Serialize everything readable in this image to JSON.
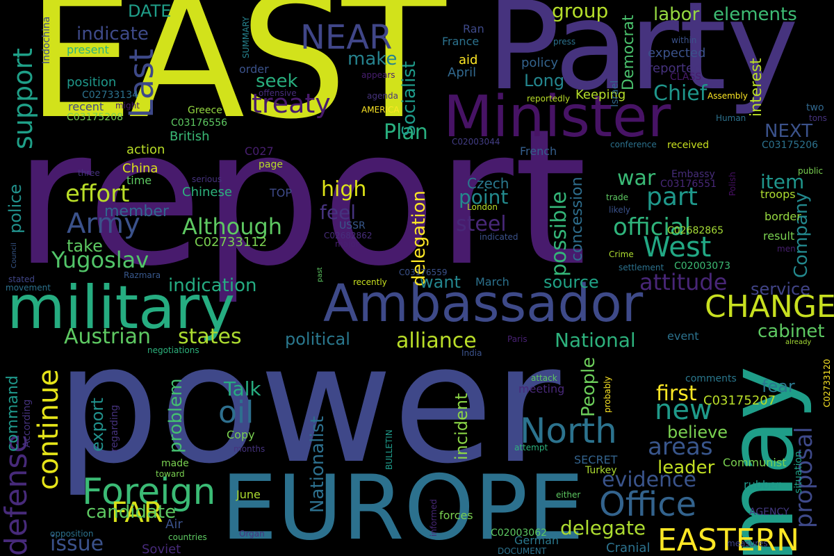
{
  "words": [
    {
      "text": "report",
      "color": "#481b6d"
    },
    {
      "text": "power",
      "color": "#3f4889"
    },
    {
      "text": "EAST",
      "color": "#d2e21b"
    },
    {
      "text": "Party",
      "color": "#46337e"
    },
    {
      "text": "may",
      "color": "#1f9e89"
    },
    {
      "text": "military",
      "color": "#26ad81"
    },
    {
      "text": "Ambassador",
      "color": "#3e4a89"
    },
    {
      "text": "EUROPE",
      "color": "#2c718e"
    },
    {
      "text": "Minister",
      "color": "#471365"
    },
    {
      "text": "Foreign",
      "color": "#3bbb75"
    },
    {
      "text": "EASTERN",
      "color": "#fde725"
    },
    {
      "text": "CHANGE",
      "color": "#c8e020"
    },
    {
      "text": "Office",
      "color": "#33638d"
    },
    {
      "text": "Army",
      "color": "#3b528b"
    },
    {
      "text": "NEAR",
      "color": "#404688"
    },
    {
      "text": "West",
      "color": "#22a884"
    },
    {
      "text": "North",
      "color": "#2c738e"
    },
    {
      "text": "continue",
      "color": "#e5e419"
    },
    {
      "text": "defense",
      "color": "#472a7a"
    },
    {
      "text": "support",
      "color": "#1fa088"
    },
    {
      "text": "Last",
      "color": "#3e4989"
    },
    {
      "text": "treaty",
      "color": "#481a6c"
    },
    {
      "text": "Austrian",
      "color": "#5ec962"
    },
    {
      "text": "states",
      "color": "#addc30"
    },
    {
      "text": "alliance",
      "color": "#bade28"
    },
    {
      "text": "National",
      "color": "#2db27d"
    },
    {
      "text": "official",
      "color": "#2fb47c"
    },
    {
      "text": "part",
      "color": "#1f988b"
    },
    {
      "text": "attitude",
      "color": "#482677"
    },
    {
      "text": "possible",
      "color": "#34b679"
    },
    {
      "text": "Yugoslav",
      "color": "#52c569"
    },
    {
      "text": "Although",
      "color": "#5ec962"
    },
    {
      "text": "effort",
      "color": "#bade28"
    },
    {
      "text": "oil",
      "color": "#2e6f8e"
    },
    {
      "text": "proposal",
      "color": "#3e4989"
    },
    {
      "text": "new",
      "color": "#1f9a8a"
    },
    {
      "text": "evidence",
      "color": "#3a548c"
    },
    {
      "text": "FAR",
      "color": "#d8e219"
    },
    {
      "text": "areas",
      "color": "#39568c"
    },
    {
      "text": "Plan",
      "color": "#29af7f"
    },
    {
      "text": "indication",
      "color": "#25ac82"
    },
    {
      "text": "Chief",
      "color": "#1f968b"
    },
    {
      "text": "Company",
      "color": "#23898e"
    },
    {
      "text": "service",
      "color": "#414487"
    },
    {
      "text": "delegation",
      "color": "#fde725"
    },
    {
      "text": "Socialist",
      "color": "#1e9b8a"
    },
    {
      "text": "group",
      "color": "#b5de2b"
    },
    {
      "text": "labor",
      "color": "#95d840"
    },
    {
      "text": "elements",
      "color": "#3dbc74"
    },
    {
      "text": "candidate",
      "color": "#5ec962"
    },
    {
      "text": "issue",
      "color": "#3b528b"
    },
    {
      "text": "delegate",
      "color": "#addc30"
    },
    {
      "text": "first",
      "color": "#fde725"
    },
    {
      "text": "believe",
      "color": "#7ad151"
    },
    {
      "text": "leader",
      "color": "#c2df23"
    },
    {
      "text": "war",
      "color": "#3aba76"
    },
    {
      "text": "item",
      "color": "#1f958b"
    },
    {
      "text": "cabinet",
      "color": "#5ec962"
    },
    {
      "text": "fear",
      "color": "#2a788e"
    },
    {
      "text": "steel",
      "color": "#482878"
    },
    {
      "text": "point",
      "color": "#238a8d"
    },
    {
      "text": "want",
      "color": "#24868e"
    },
    {
      "text": "feel",
      "color": "#46337e"
    },
    {
      "text": "high",
      "color": "#dde318"
    },
    {
      "text": "NEXT",
      "color": "#3b528b"
    },
    {
      "text": "export",
      "color": "#21918c"
    },
    {
      "text": "problem",
      "color": "#44bf70"
    },
    {
      "text": "command",
      "color": "#1f988b"
    },
    {
      "text": "police",
      "color": "#21918c"
    },
    {
      "text": "People",
      "color": "#6ccd5a"
    },
    {
      "text": "incident",
      "color": "#8bd646"
    },
    {
      "text": "Nationalist",
      "color": "#2d708e"
    },
    {
      "text": "Talk",
      "color": "#27ad81"
    },
    {
      "text": "indicate",
      "color": "#3e4a89"
    },
    {
      "text": "make",
      "color": "#26828e"
    },
    {
      "text": "seek",
      "color": "#29af7f"
    },
    {
      "text": "take",
      "color": "#5ec962"
    },
    {
      "text": "member",
      "color": "#31688e"
    },
    {
      "text": "political",
      "color": "#2a788e"
    },
    {
      "text": "source",
      "color": "#20a386"
    },
    {
      "text": "Long",
      "color": "#24868e"
    },
    {
      "text": "DATE",
      "color": "#1f9e89"
    },
    {
      "text": "Democrat",
      "color": "#4ac16d"
    },
    {
      "text": "interest",
      "color": "#bade28"
    },
    {
      "text": "expected",
      "color": "#3b528b"
    },
    {
      "text": "reported",
      "color": "#46327e"
    },
    {
      "text": "policy",
      "color": "#33638d"
    },
    {
      "text": "aid",
      "color": "#fde725"
    },
    {
      "text": "April",
      "color": "#31688e"
    },
    {
      "text": "Keeping",
      "color": "#b5de2b"
    },
    {
      "text": "concession",
      "color": "#2e6e8e"
    },
    {
      "text": "Czech",
      "color": "#2a788e"
    },
    {
      "text": "Chinese",
      "color": "#2db27d"
    },
    {
      "text": "China",
      "color": "#dde318"
    },
    {
      "text": "British",
      "color": "#3aba76"
    },
    {
      "text": "action",
      "color": "#bade28"
    },
    {
      "text": "time",
      "color": "#5ec962"
    },
    {
      "text": "position",
      "color": "#1f988b"
    },
    {
      "text": "present",
      "color": "#2db27d"
    },
    {
      "text": "recent",
      "color": "#404688"
    },
    {
      "text": "C02733134",
      "color": "#2c728e"
    },
    {
      "text": "C03175208",
      "color": "#7ad151"
    },
    {
      "text": "C03176556",
      "color": "#5ec962"
    },
    {
      "text": "C02733112",
      "color": "#7ad151"
    },
    {
      "text": "C03175207",
      "color": "#bade28"
    },
    {
      "text": "C03175206",
      "color": "#2c728e"
    },
    {
      "text": "C02682865",
      "color": "#a5db36"
    },
    {
      "text": "C03176551",
      "color": "#482878"
    },
    {
      "text": "C03176559",
      "color": "#3b528b"
    },
    {
      "text": "C02682862",
      "color": "#472d7b"
    },
    {
      "text": "C02003044",
      "color": "#433e85"
    },
    {
      "text": "C02003073",
      "color": "#3dbc74"
    },
    {
      "text": "C02003062",
      "color": "#5ec962"
    },
    {
      "text": "C02733120",
      "color": "#fde725"
    },
    {
      "text": "C027",
      "color": "#481f70"
    },
    {
      "text": "Ran",
      "color": "#3e4989"
    },
    {
      "text": "France",
      "color": "#2c728e"
    },
    {
      "text": "Israel",
      "color": "#31688e"
    },
    {
      "text": "Embassy",
      "color": "#472d7b"
    },
    {
      "text": "French",
      "color": "#355f8d"
    },
    {
      "text": "London",
      "color": "#bade28"
    },
    {
      "text": "Paris",
      "color": "#482173"
    },
    {
      "text": "India",
      "color": "#3b528b"
    },
    {
      "text": "USSR",
      "color": "#38588c"
    },
    {
      "text": "Greece",
      "color": "#95d840"
    },
    {
      "text": "Turkey",
      "color": "#addc30"
    },
    {
      "text": "Soviet",
      "color": "#472a7a"
    },
    {
      "text": "German",
      "color": "#2a788e"
    },
    {
      "text": "Air",
      "color": "#3b528b"
    },
    {
      "text": "Human",
      "color": "#2c728e"
    },
    {
      "text": "Polish",
      "color": "#471063"
    },
    {
      "text": "Razmara",
      "color": "#38588c"
    },
    {
      "text": "Indochina",
      "color": "#3e4a89"
    },
    {
      "text": "SUMMARY",
      "color": "#26828e"
    },
    {
      "text": "AMERICA",
      "color": "#fde725"
    },
    {
      "text": "CLASS",
      "color": "#481b6d"
    },
    {
      "text": "BULLETIN",
      "color": "#1f9a8a"
    },
    {
      "text": "SECRET",
      "color": "#33638d"
    },
    {
      "text": "TOP",
      "color": "#3e4a89"
    },
    {
      "text": "AGENCY",
      "color": "#443a83"
    },
    {
      "text": "DOCUMENT",
      "color": "#2c728e"
    },
    {
      "text": "Crime",
      "color": "#addc30"
    },
    {
      "text": "Cranial",
      "color": "#2c728e"
    },
    {
      "text": "Organ",
      "color": "#46337e"
    },
    {
      "text": "Copy",
      "color": "#7ad151"
    },
    {
      "text": "June",
      "color": "#addc30"
    },
    {
      "text": "March",
      "color": "#2c728e"
    },
    {
      "text": "Assembly",
      "color": "#fde725"
    },
    {
      "text": "Council",
      "color": "#38588c"
    },
    {
      "text": "press",
      "color": "#2c728e"
    },
    {
      "text": "within",
      "color": "#3b528b"
    },
    {
      "text": "tons",
      "color": "#46337e"
    },
    {
      "text": "two",
      "color": "#31688e"
    },
    {
      "text": "public",
      "color": "#7ad151"
    },
    {
      "text": "troops",
      "color": "#addc30"
    },
    {
      "text": "border",
      "color": "#95d840"
    },
    {
      "text": "result",
      "color": "#7ad151"
    },
    {
      "text": "men",
      "color": "#481f70"
    },
    {
      "text": "already",
      "color": "#a5db36"
    },
    {
      "text": "comments",
      "color": "#2a788e"
    },
    {
      "text": "situation",
      "color": "#1fa088"
    },
    {
      "text": "rubber",
      "color": "#1f988b"
    },
    {
      "text": "Communist",
      "color": "#7ad151"
    },
    {
      "text": "measures",
      "color": "#404688"
    },
    {
      "text": "either",
      "color": "#5ec962"
    },
    {
      "text": "event",
      "color": "#2c728e"
    },
    {
      "text": "received",
      "color": "#c8e020"
    },
    {
      "text": "conference",
      "color": "#2c728e"
    },
    {
      "text": "settlement",
      "color": "#2c728e"
    },
    {
      "text": "trade",
      "color": "#5ec962"
    },
    {
      "text": "likely",
      "color": "#3b528b"
    },
    {
      "text": "probably",
      "color": "#fde725"
    },
    {
      "text": "attack",
      "color": "#5ec962"
    },
    {
      "text": "meeting",
      "color": "#482878"
    },
    {
      "text": "attempt",
      "color": "#2db27d"
    },
    {
      "text": "forces",
      "color": "#7ad151"
    },
    {
      "text": "informed",
      "color": "#482878"
    },
    {
      "text": "indicated",
      "color": "#3b528b"
    },
    {
      "text": "major",
      "color": "#481f70"
    },
    {
      "text": "recently",
      "color": "#c8e020"
    },
    {
      "text": "past",
      "color": "#5ec962"
    },
    {
      "text": "countries",
      "color": "#5ec962"
    },
    {
      "text": "toward",
      "color": "#7ad151"
    },
    {
      "text": "made",
      "color": "#7ad151"
    },
    {
      "text": "months",
      "color": "#46337e"
    },
    {
      "text": "opposition",
      "color": "#2c728e"
    },
    {
      "text": "According",
      "color": "#46337e"
    },
    {
      "text": "movement",
      "color": "#2c728e"
    },
    {
      "text": "stated",
      "color": "#404688"
    },
    {
      "text": "negotiations",
      "color": "#2db27d"
    },
    {
      "text": "regarding",
      "color": "#46337e"
    },
    {
      "text": "three",
      "color": "#46337e"
    },
    {
      "text": "serious",
      "color": "#46337e"
    },
    {
      "text": "page",
      "color": "#bade28"
    },
    {
      "text": "order",
      "color": "#3b528b"
    },
    {
      "text": "might",
      "color": "#481f70"
    },
    {
      "text": "offensive",
      "color": "#472d7b"
    },
    {
      "text": "agenda",
      "color": "#46337e"
    },
    {
      "text": "appears",
      "color": "#481f70"
    },
    {
      "text": "reportedly",
      "color": "#bade28"
    }
  ]
}
